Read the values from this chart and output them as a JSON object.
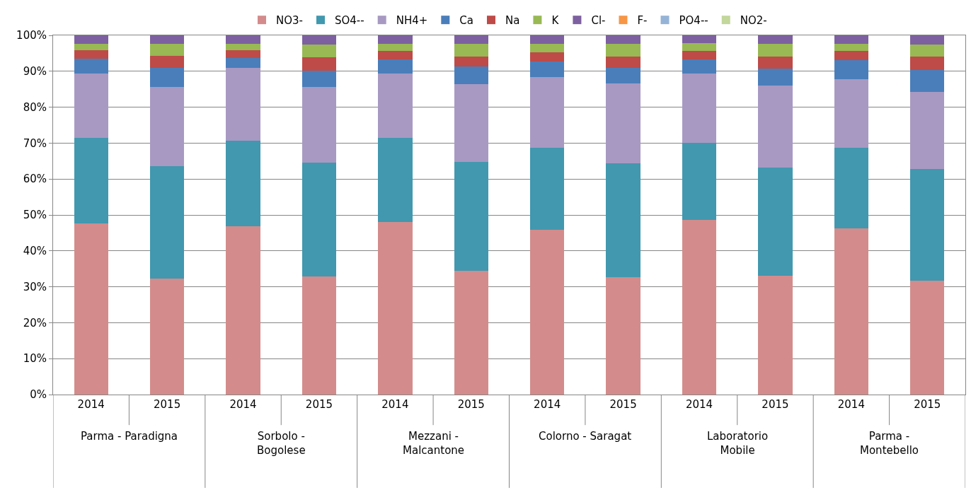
{
  "chart_data": {
    "type": "bar",
    "stacked": true,
    "categories": [
      "2014",
      "2015",
      "2014",
      "2015",
      "2014",
      "2015",
      "2014",
      "2015",
      "2014",
      "2015",
      "2014",
      "2015"
    ],
    "annotations": [
      "Parma - Paradigna",
      "Sorbolo - Bogolese",
      "Mezzani - Malcantone",
      "Colorno - Saragat",
      "Laboratorio Mobile",
      "Parma - Montebello"
    ],
    "series": [
      {
        "name": "NO3-",
        "color": "#d38c8b",
        "values": [
          47.7,
          32.2,
          46.8,
          32.8,
          48.0,
          34.4,
          45.9,
          32.6,
          48.6,
          33.1,
          46.3,
          31.7
        ]
      },
      {
        "name": "SO4--",
        "color": "#4198af",
        "values": [
          23.8,
          31.3,
          23.8,
          31.7,
          23.4,
          30.4,
          22.8,
          31.8,
          21.5,
          30.0,
          22.5,
          31.1
        ]
      },
      {
        "name": "NH4+",
        "color": "#a899c2",
        "values": [
          17.8,
          22.1,
          20.4,
          21.1,
          17.9,
          21.6,
          19.7,
          22.2,
          19.2,
          23.0,
          18.9,
          21.5
        ]
      },
      {
        "name": "Ca",
        "color": "#4a7ebb",
        "values": [
          4.2,
          5.4,
          2.7,
          4.6,
          4.1,
          5.0,
          4.4,
          4.4,
          4.0,
          4.7,
          5.4,
          6.0
        ]
      },
      {
        "name": "Na",
        "color": "#be4b48",
        "values": [
          2.4,
          3.3,
          2.2,
          3.7,
          2.2,
          2.7,
          2.5,
          3.0,
          2.4,
          3.2,
          2.5,
          3.7
        ]
      },
      {
        "name": "K",
        "color": "#98b954",
        "values": [
          1.8,
          3.3,
          1.8,
          3.6,
          2.1,
          3.5,
          2.3,
          3.6,
          2.1,
          3.6,
          2.0,
          3.5
        ]
      },
      {
        "name": "Cl-",
        "color": "#7d60a0",
        "values": [
          2.3,
          2.4,
          2.3,
          2.5,
          2.3,
          2.4,
          2.4,
          2.4,
          2.2,
          2.4,
          2.4,
          2.5
        ]
      },
      {
        "name": "F-",
        "color": "#f79646",
        "values": [
          0,
          0,
          0,
          0,
          0,
          0,
          0,
          0,
          0,
          0,
          0,
          0
        ]
      },
      {
        "name": "PO4--",
        "color": "#95b3d7",
        "values": [
          0,
          0,
          0,
          0,
          0,
          0,
          0,
          0,
          0,
          0,
          0,
          0
        ]
      },
      {
        "name": "NO2-",
        "color": "#c3d69b",
        "values": [
          0,
          0,
          0,
          0,
          0,
          0,
          0,
          0,
          0,
          0,
          0,
          0
        ]
      }
    ],
    "ylim": [
      0,
      100
    ],
    "yticks": [
      {
        "value": 0,
        "label": "0%"
      },
      {
        "value": 10,
        "label": "10%"
      },
      {
        "value": 20,
        "label": "20%"
      },
      {
        "value": 30,
        "label": "30%"
      },
      {
        "value": 40,
        "label": "40%"
      },
      {
        "value": 50,
        "label": "50%"
      },
      {
        "value": 60,
        "label": "60%"
      },
      {
        "value": 70,
        "label": "70%"
      },
      {
        "value": 80,
        "label": "80%"
      },
      {
        "value": 90,
        "label": "90%"
      },
      {
        "value": 100,
        "label": "100%"
      }
    ],
    "grid": "y",
    "legend": "top"
  }
}
